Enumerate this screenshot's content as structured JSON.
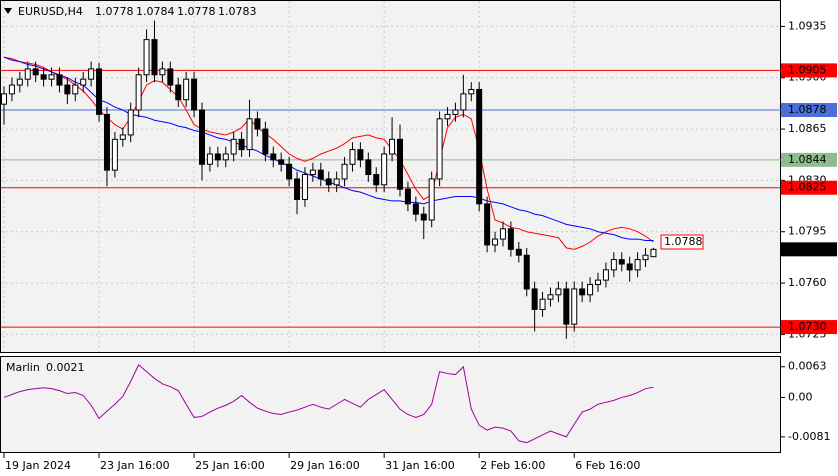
{
  "chart_data": [
    {
      "type": "candlestick",
      "title": "EURUSD,H4",
      "categories": [
        "19 Jan 2024",
        null,
        null,
        null,
        null,
        null,
        null,
        null,
        null,
        null,
        null,
        null,
        "23 Jan 16:00",
        null,
        null,
        null,
        null,
        null,
        null,
        null,
        null,
        null,
        null,
        null,
        "25 Jan 16:00",
        null,
        null,
        null,
        null,
        null,
        null,
        null,
        null,
        null,
        null,
        null,
        "29 Jan 16:00",
        null,
        null,
        null,
        null,
        null,
        null,
        null,
        null,
        null,
        null,
        null,
        "31 Jan 16:00",
        null,
        null,
        null,
        null,
        null,
        null,
        null,
        null,
        null,
        null,
        null,
        "2 Feb 16:00",
        null,
        null,
        null,
        null,
        null,
        null,
        null,
        null,
        null,
        null,
        null,
        "6 Feb 16:00",
        null,
        null,
        null,
        null,
        null,
        null,
        null,
        null,
        null,
        null
      ],
      "open": [
        1.0882,
        1.0889,
        1.0895,
        1.0899,
        1.0906,
        1.0902,
        1.0899,
        1.0902,
        1.0895,
        1.0889,
        1.0895,
        1.0899,
        1.0906,
        1.0875,
        1.0837,
        1.0858,
        1.0861,
        1.0878,
        1.0902,
        1.0926,
        1.0902,
        1.0906,
        1.0895,
        1.0885,
        1.0899,
        1.0878,
        1.0841,
        1.0848,
        1.0844,
        1.0848,
        1.0858,
        1.0851,
        1.0872,
        1.0865,
        1.0848,
        1.0844,
        1.0841,
        1.0831,
        1.0817,
        1.0834,
        1.0837,
        1.0831,
        1.0827,
        1.0831,
        1.0841,
        1.0851,
        1.0844,
        1.0834,
        1.0827,
        1.0848,
        1.0858,
        1.0824,
        1.0814,
        1.0807,
        1.0803,
        1.0831,
        1.0872,
        1.0875,
        1.0878,
        1.0889,
        1.0892,
        1.0814,
        1.0786,
        1.079,
        1.0797,
        1.0783,
        1.0779,
        1.0756,
        1.0742,
        1.0749,
        1.0752,
        1.0756,
        1.0732,
        1.0756,
        1.0752,
        1.0759,
        1.0762,
        1.0769,
        1.0776,
        1.0773,
        1.0769,
        1.0776,
        1.0778
      ],
      "high": [
        1.0894,
        1.09,
        1.0904,
        1.0911,
        1.0911,
        1.0907,
        1.0907,
        1.0907,
        1.09,
        1.09,
        1.0904,
        1.0911,
        1.091,
        1.088,
        1.0863,
        1.0866,
        1.0883,
        1.0907,
        1.0933,
        1.0939,
        1.0911,
        1.0911,
        1.09,
        1.0904,
        1.0904,
        1.0883,
        1.0853,
        1.0853,
        1.0853,
        1.0863,
        1.0863,
        1.0885,
        1.0877,
        1.087,
        1.0853,
        1.0849,
        1.0846,
        1.0836,
        1.0839,
        1.0842,
        1.0842,
        1.0836,
        1.0836,
        1.0846,
        1.0856,
        1.0856,
        1.0849,
        1.0839,
        1.0853,
        1.0873,
        1.0868,
        1.0829,
        1.0819,
        1.0812,
        1.0836,
        1.0877,
        1.088,
        1.0883,
        1.0902,
        1.0897,
        1.0897,
        1.0819,
        1.0795,
        1.0802,
        1.0802,
        1.0788,
        1.0784,
        1.0761,
        1.0754,
        1.0757,
        1.0761,
        1.0761,
        1.0761,
        1.0761,
        1.0764,
        1.0767,
        1.0774,
        1.0781,
        1.0781,
        1.0778,
        1.0781,
        1.0784,
        1.0784
      ],
      "low": [
        1.0868,
        1.0884,
        1.089,
        1.0894,
        1.0897,
        1.0894,
        1.0894,
        1.089,
        1.0882,
        1.0884,
        1.089,
        1.0894,
        1.087,
        1.0826,
        1.0832,
        1.0853,
        1.0856,
        1.0873,
        1.0897,
        1.0897,
        1.0897,
        1.089,
        1.088,
        1.088,
        1.0873,
        1.083,
        1.0836,
        1.0839,
        1.0839,
        1.0843,
        1.0846,
        1.0846,
        1.086,
        1.0843,
        1.0839,
        1.0836,
        1.0826,
        1.0807,
        1.0812,
        1.0829,
        1.0826,
        1.0822,
        1.0822,
        1.0826,
        1.0836,
        1.0839,
        1.0829,
        1.0822,
        1.0822,
        1.0843,
        1.0819,
        1.0809,
        1.0802,
        1.079,
        1.0798,
        1.0826,
        1.0867,
        1.087,
        1.0873,
        1.0884,
        1.0809,
        1.0781,
        1.0781,
        1.0785,
        1.0778,
        1.0774,
        1.0751,
        1.0727,
        1.0737,
        1.0744,
        1.0747,
        1.0722,
        1.0727,
        1.0747,
        1.0747,
        1.0754,
        1.0757,
        1.0764,
        1.0768,
        1.0761,
        1.0764,
        1.0771,
        1.0778
      ],
      "close": [
        1.0889,
        1.0895,
        1.0899,
        1.0906,
        1.0902,
        1.0899,
        1.0902,
        1.0895,
        1.0889,
        1.0895,
        1.0899,
        1.0906,
        1.0875,
        1.0837,
        1.0858,
        1.0861,
        1.0878,
        1.0902,
        1.0926,
        1.0902,
        1.0906,
        1.0895,
        1.0885,
        1.0899,
        1.0878,
        1.0841,
        1.0848,
        1.0844,
        1.0848,
        1.0858,
        1.0851,
        1.0872,
        1.0865,
        1.0848,
        1.0844,
        1.0841,
        1.0831,
        1.0817,
        1.0834,
        1.0837,
        1.0831,
        1.0827,
        1.0831,
        1.0841,
        1.0851,
        1.0844,
        1.0834,
        1.0827,
        1.0848,
        1.0858,
        1.0824,
        1.0814,
        1.0807,
        1.0803,
        1.0831,
        1.0872,
        1.0875,
        1.0878,
        1.0889,
        1.0892,
        1.0814,
        1.0786,
        1.079,
        1.0797,
        1.0783,
        1.0779,
        1.0756,
        1.0742,
        1.0749,
        1.0752,
        1.0756,
        1.0732,
        1.0756,
        1.0752,
        1.0759,
        1.0762,
        1.0769,
        1.0776,
        1.0773,
        1.0769,
        1.0776,
        1.0779,
        1.0783
      ],
      "up_color": "#ffffff",
      "down_color": "#000000",
      "lines": [
        {
          "color": "#ff0000",
          "values": [
            1.0914,
            1.0913,
            1.0911,
            1.091,
            1.0909,
            1.0907,
            1.0904,
            1.0901,
            1.0899,
            1.0895,
            1.0891,
            1.0885,
            1.0878,
            1.0873,
            1.0868,
            1.0865,
            1.0873,
            1.0884,
            1.0895,
            1.0898,
            1.0897,
            1.0892,
            1.0887,
            1.0878,
            1.0868,
            1.0865,
            1.0863,
            1.0862,
            1.0861,
            1.0863,
            1.0866,
            1.0872,
            1.0866,
            1.0862,
            1.0858,
            1.0853,
            1.0848,
            1.0845,
            1.0843,
            1.0845,
            1.0848,
            1.085,
            1.0852,
            1.0855,
            1.0859,
            1.086,
            1.0861,
            1.0859,
            1.0858,
            1.0851,
            1.0844,
            1.0834,
            1.0824,
            1.0817,
            1.082,
            1.0844,
            1.0866,
            1.0873,
            1.0875,
            1.0872,
            1.0851,
            1.0824,
            1.0803,
            1.0801,
            1.0798,
            1.0797,
            1.0795,
            1.0794,
            1.0793,
            1.0792,
            1.0791,
            1.0784,
            1.0783,
            1.0785,
            1.0788,
            1.0792,
            1.0795,
            1.0797,
            1.0798,
            1.0797,
            1.0795,
            1.0792,
            1.0788
          ]
        },
        {
          "color": "#0000ff",
          "values": [
            1.0914,
            1.0912,
            1.0911,
            1.0909,
            1.0908,
            1.0906,
            1.0904,
            1.0902,
            1.09,
            1.0897,
            1.0895,
            1.089,
            1.0885,
            1.0883,
            1.088,
            1.0878,
            1.0875,
            1.0874,
            1.0873,
            1.0871,
            1.087,
            1.0869,
            1.0867,
            1.0866,
            1.0864,
            1.0863,
            1.0861,
            1.0859,
            1.0858,
            1.0856,
            1.0854,
            1.0852,
            1.085,
            1.0847,
            1.0845,
            1.0842,
            1.084,
            1.0837,
            1.0835,
            1.0833,
            1.0831,
            1.0829,
            1.0827,
            1.0825,
            1.0823,
            1.0822,
            1.082,
            1.0818,
            1.0817,
            1.0816,
            1.0816,
            1.0815,
            1.0815,
            1.0814,
            1.0816,
            1.0817,
            1.0818,
            1.0819,
            1.0819,
            1.0819,
            1.0818,
            1.0816,
            1.0815,
            1.0814,
            1.0812,
            1.081,
            1.0809,
            1.0807,
            1.0806,
            1.0804,
            1.0802,
            1.08,
            1.0799,
            1.0798,
            1.0797,
            1.0795,
            1.0794,
            1.0793,
            1.0791,
            1.079,
            1.079,
            1.0789,
            1.0789
          ]
        }
      ],
      "levels": [
        {
          "value": 1.0905,
          "color": "#ff0000"
        },
        {
          "value": 1.0878,
          "color": "#4a6fd8"
        },
        {
          "value": 1.0844,
          "color": "#8fbc8f"
        },
        {
          "value": 1.0825,
          "color": "#ff0000"
        },
        {
          "value": 1.073,
          "label": "1.0730",
          "color": "#ff0000"
        }
      ],
      "ylim": [
        1.0713,
        1.0953
      ],
      "yticks": [
        1.0935,
        {
          "value": 1.09,
          "label": "1.0900"
        },
        1.0865,
        {
          "value": 1.083,
          "label": "1.0830"
        },
        1.0795,
        {
          "value": 1.076,
          "label": "1.0760"
        },
        1.0725
      ],
      "grid": true
    },
    {
      "type": "line",
      "title": "Marlin",
      "color": "#a000a0",
      "values": [
        0.0,
        0.0006,
        0.0012,
        0.0016,
        0.0018,
        0.002,
        0.0018,
        0.0014,
        0.0008,
        0.001,
        0.0004,
        -0.0016,
        -0.0043,
        -0.0028,
        -0.0014,
        0.0002,
        0.0033,
        0.0067,
        0.0053,
        0.0039,
        0.0028,
        0.0022,
        0.0014,
        -0.0014,
        -0.0041,
        -0.0039,
        -0.003,
        -0.0022,
        -0.0016,
        -0.0008,
        0.0004,
        -0.001,
        -0.0022,
        -0.0028,
        -0.0033,
        -0.0035,
        -0.003,
        -0.0026,
        -0.002,
        -0.0014,
        -0.002,
        -0.0024,
        -0.0014,
        -0.0004,
        -0.0012,
        -0.002,
        -0.0004,
        0.0006,
        0.0016,
        -0.0004,
        -0.0024,
        -0.0035,
        -0.0041,
        -0.0035,
        -0.0014,
        0.0053,
        0.0049,
        0.0047,
        0.0063,
        -0.0024,
        -0.0057,
        -0.0067,
        -0.0061,
        -0.0063,
        -0.0069,
        -0.0089,
        -0.0093,
        -0.0085,
        -0.0077,
        -0.0069,
        -0.0075,
        -0.0081,
        -0.0055,
        -0.003,
        -0.0024,
        -0.0014,
        -0.001,
        -0.0006,
        0.0,
        0.0004,
        0.001,
        0.0018,
        0.0021
      ],
      "ylim": [
        -0.0112,
        0.0083
      ],
      "yticks": [
        0.0063,
        {
          "value": 0,
          "label": "0.00"
        },
        -0.0081
      ]
    }
  ]
}
